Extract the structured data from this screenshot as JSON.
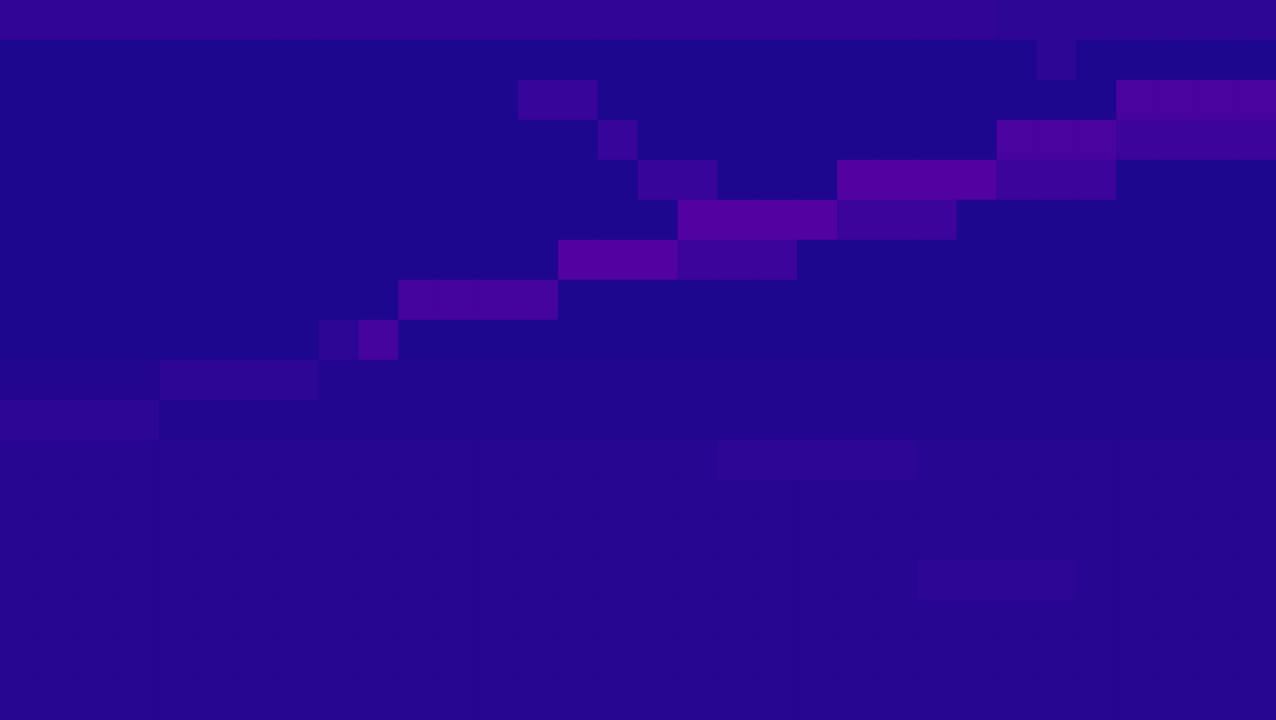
{
  "chart_data": {
    "type": "heatmap",
    "zlim": [
      0,
      1
    ],
    "tick_labels": false,
    "grid": false,
    "cells": [
      [
        0.07,
        0.07,
        0.07,
        0.07,
        0.07,
        0.07,
        0.07,
        0.07,
        0.07,
        0.07,
        0.07,
        0.07,
        0.07,
        0.07,
        0.07,
        0.07,
        0.07,
        0.07,
        0.07,
        0.07,
        0.07,
        0.07,
        0.07,
        0.07,
        0.07,
        0.06,
        0.06,
        0.06,
        0.06,
        0.06,
        0.06,
        0.06
      ],
      [
        0.03,
        0.03,
        0.03,
        0.03,
        0.03,
        0.03,
        0.03,
        0.03,
        0.03,
        0.03,
        0.03,
        0.03,
        0.03,
        0.03,
        0.03,
        0.03,
        0.03,
        0.03,
        0.03,
        0.03,
        0.03,
        0.03,
        0.03,
        0.03,
        0.03,
        0.03,
        0.06,
        0.03,
        0.03,
        0.03,
        0.03,
        0.03
      ],
      [
        0.03,
        0.03,
        0.03,
        0.03,
        0.03,
        0.03,
        0.03,
        0.03,
        0.03,
        0.03,
        0.03,
        0.03,
        0.03,
        0.08,
        0.08,
        0.03,
        0.03,
        0.03,
        0.03,
        0.03,
        0.03,
        0.03,
        0.03,
        0.03,
        0.03,
        0.03,
        0.03,
        0.03,
        0.12,
        0.12,
        0.12,
        0.12
      ],
      [
        0.03,
        0.03,
        0.03,
        0.03,
        0.03,
        0.03,
        0.03,
        0.03,
        0.03,
        0.03,
        0.03,
        0.03,
        0.03,
        0.03,
        0.03,
        0.08,
        0.03,
        0.03,
        0.03,
        0.03,
        0.03,
        0.03,
        0.03,
        0.03,
        0.03,
        0.12,
        0.12,
        0.12,
        0.09,
        0.09,
        0.09,
        0.09
      ],
      [
        0.03,
        0.03,
        0.03,
        0.03,
        0.03,
        0.03,
        0.03,
        0.03,
        0.03,
        0.03,
        0.03,
        0.03,
        0.03,
        0.03,
        0.03,
        0.03,
        0.08,
        0.08,
        0.03,
        0.03,
        0.03,
        0.14,
        0.14,
        0.14,
        0.14,
        0.09,
        0.09,
        0.09,
        0.03,
        0.03,
        0.03,
        0.03
      ],
      [
        0.03,
        0.03,
        0.03,
        0.03,
        0.03,
        0.03,
        0.03,
        0.03,
        0.03,
        0.03,
        0.03,
        0.03,
        0.03,
        0.03,
        0.03,
        0.03,
        0.03,
        0.14,
        0.14,
        0.14,
        0.14,
        0.09,
        0.09,
        0.09,
        0.03,
        0.03,
        0.03,
        0.03,
        0.03,
        0.03,
        0.03,
        0.03
      ],
      [
        0.03,
        0.03,
        0.03,
        0.03,
        0.03,
        0.03,
        0.03,
        0.03,
        0.03,
        0.03,
        0.03,
        0.03,
        0.03,
        0.03,
        0.14,
        0.14,
        0.14,
        0.09,
        0.09,
        0.09,
        0.03,
        0.03,
        0.03,
        0.03,
        0.03,
        0.03,
        0.03,
        0.03,
        0.03,
        0.03,
        0.03,
        0.03
      ],
      [
        0.03,
        0.03,
        0.03,
        0.03,
        0.03,
        0.03,
        0.03,
        0.03,
        0.03,
        0.03,
        0.11,
        0.11,
        0.11,
        0.11,
        0.03,
        0.03,
        0.03,
        0.03,
        0.03,
        0.03,
        0.03,
        0.03,
        0.03,
        0.03,
        0.03,
        0.03,
        0.03,
        0.03,
        0.03,
        0.03,
        0.03,
        0.03
      ],
      [
        0.03,
        0.03,
        0.03,
        0.03,
        0.03,
        0.03,
        0.03,
        0.03,
        0.06,
        0.11,
        0.03,
        0.03,
        0.03,
        0.03,
        0.03,
        0.03,
        0.03,
        0.03,
        0.03,
        0.03,
        0.03,
        0.03,
        0.03,
        0.03,
        0.03,
        0.03,
        0.03,
        0.03,
        0.03,
        0.03,
        0.03,
        0.03
      ],
      [
        0.04,
        0.04,
        0.04,
        0.04,
        0.06,
        0.06,
        0.06,
        0.06,
        0.04,
        0.04,
        0.04,
        0.04,
        0.04,
        0.04,
        0.04,
        0.04,
        0.04,
        0.04,
        0.04,
        0.04,
        0.04,
        0.04,
        0.04,
        0.04,
        0.04,
        0.04,
        0.04,
        0.04,
        0.04,
        0.04,
        0.04,
        0.04
      ],
      [
        0.06,
        0.06,
        0.06,
        0.06,
        0.04,
        0.04,
        0.04,
        0.04,
        0.04,
        0.04,
        0.04,
        0.04,
        0.04,
        0.04,
        0.04,
        0.04,
        0.04,
        0.04,
        0.04,
        0.04,
        0.04,
        0.04,
        0.04,
        0.04,
        0.04,
        0.04,
        0.04,
        0.04,
        0.04,
        0.04,
        0.04,
        0.04
      ],
      [
        0.05,
        0.05,
        0.05,
        0.05,
        0.05,
        0.05,
        0.05,
        0.05,
        0.05,
        0.05,
        0.05,
        0.05,
        0.05,
        0.05,
        0.05,
        0.05,
        0.05,
        0.05,
        0.06,
        0.06,
        0.06,
        0.06,
        0.06,
        0.05,
        0.05,
        0.05,
        0.05,
        0.05,
        0.05,
        0.05,
        0.05,
        0.05
      ],
      [
        0.05,
        0.05,
        0.05,
        0.05,
        0.05,
        0.05,
        0.05,
        0.05,
        0.05,
        0.05,
        0.05,
        0.05,
        0.05,
        0.05,
        0.05,
        0.05,
        0.05,
        0.05,
        0.05,
        0.05,
        0.05,
        0.05,
        0.05,
        0.05,
        0.05,
        0.05,
        0.05,
        0.05,
        0.05,
        0.05,
        0.05,
        0.05
      ],
      [
        0.05,
        0.05,
        0.05,
        0.05,
        0.05,
        0.05,
        0.05,
        0.05,
        0.05,
        0.05,
        0.05,
        0.05,
        0.05,
        0.05,
        0.05,
        0.05,
        0.05,
        0.05,
        0.05,
        0.05,
        0.05,
        0.05,
        0.05,
        0.05,
        0.05,
        0.05,
        0.05,
        0.05,
        0.05,
        0.05,
        0.05,
        0.05
      ],
      [
        0.05,
        0.05,
        0.05,
        0.05,
        0.05,
        0.05,
        0.05,
        0.05,
        0.05,
        0.05,
        0.05,
        0.05,
        0.05,
        0.05,
        0.05,
        0.05,
        0.05,
        0.05,
        0.05,
        0.05,
        0.05,
        0.05,
        0.05,
        0.06,
        0.06,
        0.06,
        0.06,
        0.05,
        0.05,
        0.05,
        0.05,
        0.05
      ],
      [
        0.05,
        0.05,
        0.05,
        0.05,
        0.05,
        0.05,
        0.05,
        0.05,
        0.05,
        0.05,
        0.05,
        0.05,
        0.05,
        0.05,
        0.05,
        0.05,
        0.05,
        0.05,
        0.05,
        0.05,
        0.05,
        0.05,
        0.05,
        0.05,
        0.05,
        0.05,
        0.05,
        0.05,
        0.05,
        0.05,
        0.05,
        0.05
      ],
      [
        0.05,
        0.05,
        0.05,
        0.05,
        0.05,
        0.05,
        0.05,
        0.05,
        0.05,
        0.05,
        0.05,
        0.05,
        0.05,
        0.05,
        0.05,
        0.05,
        0.05,
        0.05,
        0.05,
        0.05,
        0.05,
        0.05,
        0.05,
        0.05,
        0.05,
        0.05,
        0.05,
        0.05,
        0.05,
        0.05,
        0.05,
        0.05
      ],
      [
        0.05,
        0.05,
        0.05,
        0.05,
        0.05,
        0.05,
        0.05,
        0.05,
        0.05,
        0.05,
        0.05,
        0.05,
        0.05,
        0.05,
        0.05,
        0.05,
        0.05,
        0.05,
        0.05,
        0.05,
        0.05,
        0.05,
        0.05,
        0.05,
        0.05,
        0.05,
        0.05,
        0.05,
        0.05,
        0.05,
        0.05,
        0.05
      ]
    ]
  }
}
